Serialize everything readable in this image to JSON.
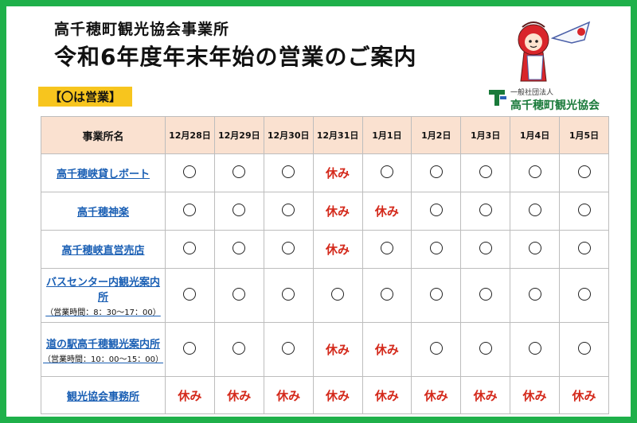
{
  "header": {
    "org": "高千穂町観光協会事業所",
    "title": "令和6年度年末年始の営業のご案内",
    "badge": "【〇は営業】"
  },
  "association": {
    "small": "一般社団法人",
    "name": "高千穂町観光協会"
  },
  "table": {
    "name_header": "事業所名",
    "dates": [
      "12月28日",
      "12月29日",
      "12月30日",
      "12月31日",
      "1月1日",
      "1月2日",
      "1月3日",
      "1月4日",
      "1月5日"
    ],
    "open_symbol": "〇",
    "closed_label": "休み",
    "rows": [
      {
        "name": "高千穂峡貸しボート",
        "sub": "",
        "status": [
          "open",
          "open",
          "open",
          "closed",
          "open",
          "open",
          "open",
          "open",
          "open"
        ]
      },
      {
        "name": "高千穂神楽",
        "sub": "",
        "status": [
          "open",
          "open",
          "open",
          "closed",
          "closed",
          "open",
          "open",
          "open",
          "open"
        ]
      },
      {
        "name": "高千穂峡直営売店",
        "sub": "",
        "status": [
          "open",
          "open",
          "open",
          "closed",
          "open",
          "open",
          "open",
          "open",
          "open"
        ]
      },
      {
        "name": "バスセンター内観光案内所",
        "sub": "（営業時間：8：30〜17：00）",
        "status": [
          "open",
          "open",
          "open",
          "open",
          "open",
          "open",
          "open",
          "open",
          "open"
        ]
      },
      {
        "name": "道の駅高千穂観光案内所",
        "sub": "（営業時間：10：00〜15：00）",
        "status": [
          "open",
          "open",
          "open",
          "closed",
          "closed",
          "open",
          "open",
          "open",
          "open"
        ]
      },
      {
        "name": "観光協会事務所",
        "sub": "",
        "status": [
          "closed",
          "closed",
          "closed",
          "closed",
          "closed",
          "closed",
          "closed",
          "closed",
          "closed"
        ]
      }
    ]
  },
  "colors": {
    "border_green": "#1fb04a",
    "badge_yellow": "#f7c51e",
    "header_peach": "#fae1d0",
    "closed_red": "#d42a1c",
    "link_blue": "#1a5fb4"
  },
  "icons": [
    "mascot-character",
    "association-logo-icon"
  ]
}
